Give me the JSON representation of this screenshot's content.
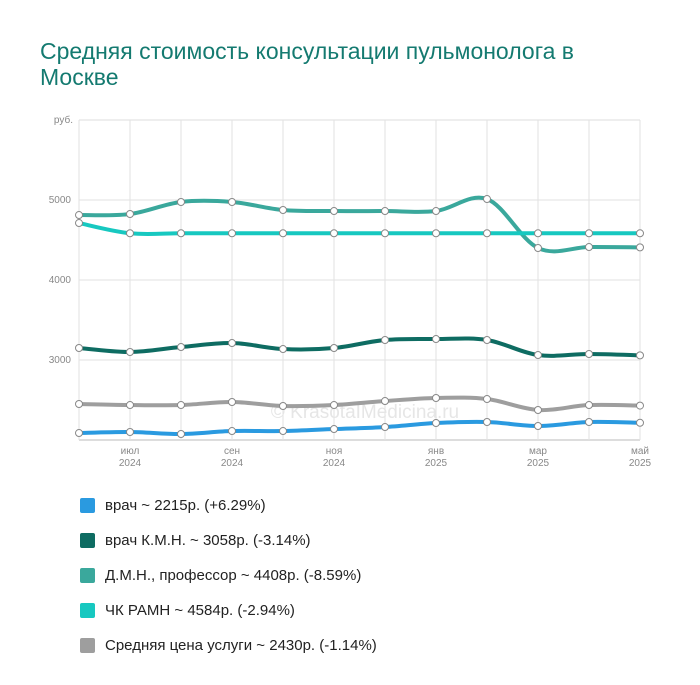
{
  "chart_data": {
    "type": "line",
    "title": "Средняя стоимость консультации пульмонолога в Москве",
    "y_label": "руб.",
    "watermark": "© KrasotaIMedicina.ru",
    "categories": [
      null,
      "июл 2024",
      null,
      "сен 2024",
      null,
      "ноя 2024",
      null,
      "янв 2025",
      null,
      "мар 2025",
      null,
      "май 2025"
    ],
    "ylim": [
      2000,
      6000
    ],
    "yticks": [
      3000,
      4000,
      5000
    ],
    "grid": true,
    "series": [
      {
        "name": "врач ~ 2215р. (+6.29%)",
        "color": "#2a9ae0",
        "values": [
          2087,
          2100,
          2075,
          2112,
          2112,
          2137,
          2162,
          2212,
          2225,
          2175,
          2225,
          2215
        ]
      },
      {
        "name": "врач К.М.Н. ~ 3058р. (-3.14%)",
        "color": "#0e6c62",
        "values": [
          3150,
          3100,
          3162,
          3212,
          3137,
          3150,
          3250,
          3262,
          3250,
          3062,
          3075,
          3058
        ]
      },
      {
        "name": "Д.М.Н., профессор ~ 4408р. (-8.59%)",
        "color": "#3aa89c",
        "values": [
          4812,
          4825,
          4975,
          4975,
          4875,
          4862,
          4862,
          4862,
          5012,
          4400,
          4412,
          4408
        ]
      },
      {
        "name": "ЧК РАМН ~ 4584р. (-2.94%)",
        "color": "#17c8c0",
        "values": [
          4712,
          4584,
          4584,
          4584,
          4584,
          4584,
          4584,
          4584,
          4584,
          4584,
          4584,
          4584
        ]
      },
      {
        "name": "Средняя цена услуги ~ 2430р. (-1.14%)",
        "color": "#9e9e9e",
        "values": [
          2450,
          2437,
          2437,
          2475,
          2425,
          2437,
          2487,
          2525,
          2512,
          2375,
          2437,
          2430
        ]
      }
    ]
  }
}
